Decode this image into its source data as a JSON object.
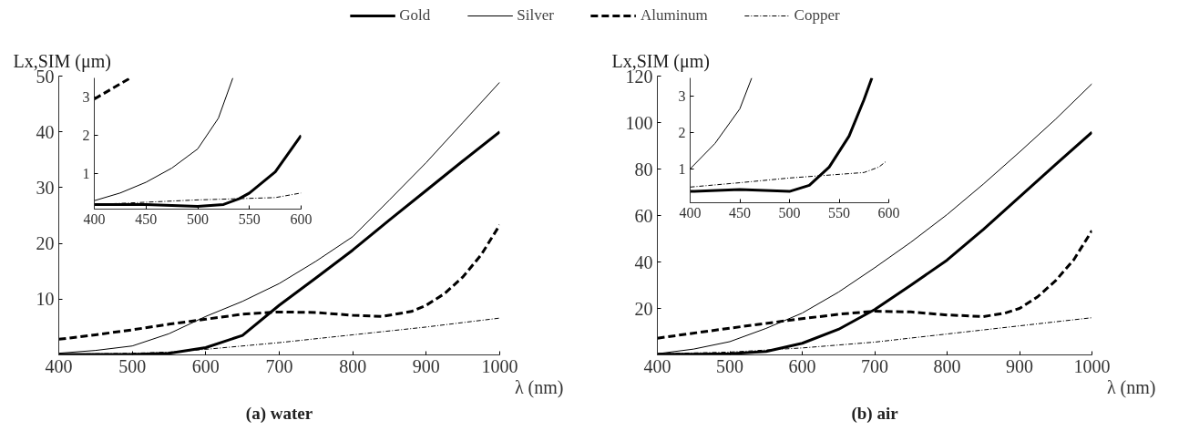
{
  "chart_data": [
    {
      "type": "line",
      "title": "(a) water",
      "xlabel": "λ (nm)",
      "ylabel": "Lx,SIM (μm)",
      "legend": "top",
      "x": [
        400,
        450,
        500,
        550,
        600,
        650,
        700,
        750,
        800,
        850,
        900,
        950,
        1000
      ],
      "series": [
        {
          "name": "Gold",
          "color": "#000000",
          "line_style": "solid",
          "values": [
            0.1,
            0.1,
            0.1,
            0.3,
            1.3,
            3.5,
            8.9,
            13.8,
            18.8,
            24.2,
            29.5,
            34.8,
            40.0
          ]
        },
        {
          "name": "Silver",
          "color": "#000000",
          "line_style": "solid",
          "values": [
            0.3,
            0.8,
            1.6,
            3.8,
            6.9,
            9.6,
            12.8,
            16.8,
            21.2,
            27.8,
            34.5,
            41.7,
            48.9
          ]
        },
        {
          "name": "Aluminum",
          "color": "#000000",
          "line_style": "dashed",
          "x": [
            400,
            450,
            500,
            550,
            600,
            650,
            700,
            750,
            800,
            840,
            880,
            900,
            925,
            950,
            975,
            1000
          ],
          "values": [
            2.8,
            3.6,
            4.5,
            5.5,
            6.4,
            7.3,
            7.7,
            7.6,
            7.1,
            6.9,
            7.8,
            8.9,
            11,
            14,
            18,
            23.3
          ]
        },
        {
          "name": "Copper",
          "color": "#000000",
          "line_style": "dashdot",
          "x": [
            400,
            500,
            550,
            600,
            700,
            800,
            900,
            1000
          ],
          "values": [
            0.1,
            0.3,
            0.5,
            1.0,
            2.2,
            3.6,
            5.0,
            6.6
          ]
        }
      ],
      "xlim": [
        400,
        1000
      ],
      "ylim": [
        0,
        50
      ],
      "xticks": [
        400,
        500,
        600,
        700,
        800,
        900,
        1000
      ],
      "yticks": [
        10,
        20,
        30,
        40,
        50
      ]
    },
    {
      "type": "line",
      "series": [
        {
          "color": "#000000",
          "line_style": "solid",
          "x": [
            400,
            450,
            500,
            525,
            540,
            550,
            575,
            600
          ],
          "values": [
            0.2,
            0.2,
            0.15,
            0.2,
            0.35,
            0.5,
            1.05,
            2.0
          ]
        },
        {
          "color": "#000000",
          "line_style": "solid",
          "x": [
            400,
            425,
            450,
            475,
            500,
            520,
            534
          ],
          "values": [
            0.3,
            0.5,
            0.78,
            1.15,
            1.65,
            2.45,
            3.5
          ]
        },
        {
          "color": "#000000",
          "line_style": "dashed",
          "x": [
            400,
            435
          ],
          "values": [
            2.95,
            3.5
          ]
        },
        {
          "color": "#000000",
          "line_style": "dashdot",
          "x": [
            400,
            450,
            500,
            550,
            575,
            600
          ],
          "values": [
            0.2,
            0.26,
            0.32,
            0.36,
            0.38,
            0.5
          ]
        }
      ],
      "xlim": [
        400,
        600
      ],
      "ylim": [
        0.08,
        3.5
      ],
      "xticks": [
        400,
        450,
        500,
        550,
        600
      ],
      "yticks": [
        1,
        2,
        3
      ]
    },
    {
      "type": "line",
      "title": "(b) air",
      "xlabel": "λ (nm)",
      "ylabel": "Lx,SIM (μm)",
      "x": [
        400,
        450,
        500,
        550,
        600,
        650,
        700,
        750,
        800,
        850,
        900,
        950,
        1000
      ],
      "series": [
        {
          "color": "#000000",
          "line_style": "solid",
          "values": [
            0.3,
            0.3,
            0.5,
            1.5,
            5,
            11,
            19.5,
            30,
            40.8,
            54,
            68,
            82,
            95.8
          ]
        },
        {
          "color": "#000000",
          "line_style": "solid",
          "values": [
            0.5,
            2.5,
            5.7,
            11.4,
            18,
            27,
            37.5,
            48.5,
            60.4,
            73.5,
            87.3,
            101.5,
            116.7
          ]
        },
        {
          "color": "#000000",
          "line_style": "dashed",
          "x": [
            400,
            500,
            580,
            650,
            700,
            750,
            800,
            850,
            880,
            900,
            925,
            950,
            975,
            1000
          ],
          "values": [
            7.2,
            11.5,
            14.8,
            17.5,
            18.8,
            18.5,
            17.2,
            16.5,
            18,
            20,
            25,
            32,
            41,
            53.5
          ]
        },
        {
          "color": "#000000",
          "line_style": "dashdot",
          "x": [
            400,
            500,
            600,
            700,
            800,
            900,
            1000
          ],
          "values": [
            0.5,
            1.2,
            3,
            5.5,
            9,
            12.5,
            16
          ]
        }
      ],
      "xlim": [
        400,
        1000
      ],
      "ylim": [
        0,
        120
      ],
      "xticks": [
        400,
        500,
        600,
        700,
        800,
        900,
        1000
      ],
      "yticks": [
        20,
        40,
        60,
        80,
        100,
        120
      ]
    },
    {
      "type": "line",
      "series": [
        {
          "color": "#000000",
          "line_style": "solid",
          "x": [
            400,
            450,
            500,
            520,
            540,
            560,
            575,
            583
          ],
          "values": [
            0.38,
            0.43,
            0.38,
            0.55,
            1.05,
            1.9,
            2.9,
            3.5
          ]
        },
        {
          "color": "#000000",
          "line_style": "solid",
          "x": [
            400,
            425,
            450,
            462
          ],
          "values": [
            1.0,
            1.7,
            2.65,
            3.5
          ]
        },
        {
          "color": "#000000",
          "line_style": "dashdot",
          "x": [
            400,
            450,
            500,
            550,
            575,
            590,
            597
          ],
          "values": [
            0.5,
            0.62,
            0.75,
            0.85,
            0.9,
            1.05,
            1.2
          ]
        }
      ],
      "xlim": [
        400,
        600
      ],
      "ylim": [
        0.07,
        3.5
      ],
      "xticks": [
        400,
        450,
        500,
        550,
        600
      ],
      "yticks": [
        1,
        2,
        3
      ]
    }
  ]
}
